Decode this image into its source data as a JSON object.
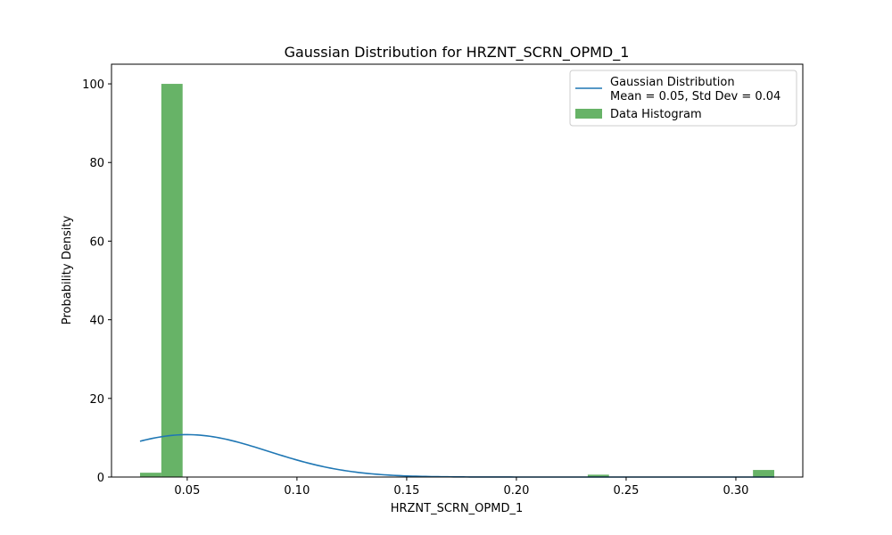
{
  "chart_data": {
    "type": "bar",
    "title": "Gaussian Distribution for HRZNT_SCRN_OPMD_1",
    "xlabel": "HRZNT_SCRN_OPMD_1",
    "ylabel": "Probability Density",
    "xlim": [
      0.0155,
      0.3305
    ],
    "ylim": [
      0,
      105
    ],
    "xticks": [
      0.05,
      0.1,
      0.15,
      0.2,
      0.25,
      0.3
    ],
    "xtick_labels": [
      "0.05",
      "0.10",
      "0.15",
      "0.20",
      "0.25",
      "0.30"
    ],
    "yticks": [
      0,
      20,
      40,
      60,
      80,
      100
    ],
    "ytick_labels": [
      "0",
      "20",
      "40",
      "60",
      "80",
      "100"
    ],
    "grid": false,
    "legend_placement": "top-right",
    "histogram": {
      "name": "Data Histogram",
      "color": "#4CA64C",
      "bins": [
        {
          "x0": 0.0285,
          "x1": 0.0382,
          "value": 1.1
        },
        {
          "x0": 0.0382,
          "x1": 0.0479,
          "value": 100
        },
        {
          "x0": 0.2325,
          "x1": 0.2422,
          "value": 0.6
        },
        {
          "x0": 0.3078,
          "x1": 0.3175,
          "value": 1.8
        }
      ]
    },
    "gaussian": {
      "name_line1": "Gaussian Distribution",
      "name_line2": "Mean = 0.05, Std Dev = 0.04",
      "color": "#1f77b4",
      "mean": 0.05,
      "std": 0.037,
      "x_range": [
        0.0285,
        0.3175
      ]
    }
  }
}
